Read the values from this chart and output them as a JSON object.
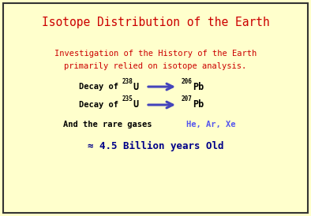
{
  "title": "Isotope Distribution of the Earth",
  "title_color": "#cc0000",
  "background_color": "#ffffcc",
  "border_color": "#333333",
  "line1": "Investigation of the History of the Earth",
  "line2": "primarily relied on isotope analysis.",
  "body_color": "#cc0000",
  "decay_color": "#000000",
  "arrow_color": "#4444bb",
  "rare_gas_label": "And the rare gases  ",
  "rare_gases": "He, Ar, Xe",
  "rare_gas_color": "#5555ee",
  "age_text": "≈ 4.5 Billion years Old",
  "age_color": "#000088",
  "title_fontsize": 10.5,
  "body_fontsize": 7.5,
  "decay_fontsize": 7.5,
  "super_fontsize": 5.5,
  "element_fontsize": 8.5,
  "age_fontsize": 9.0
}
